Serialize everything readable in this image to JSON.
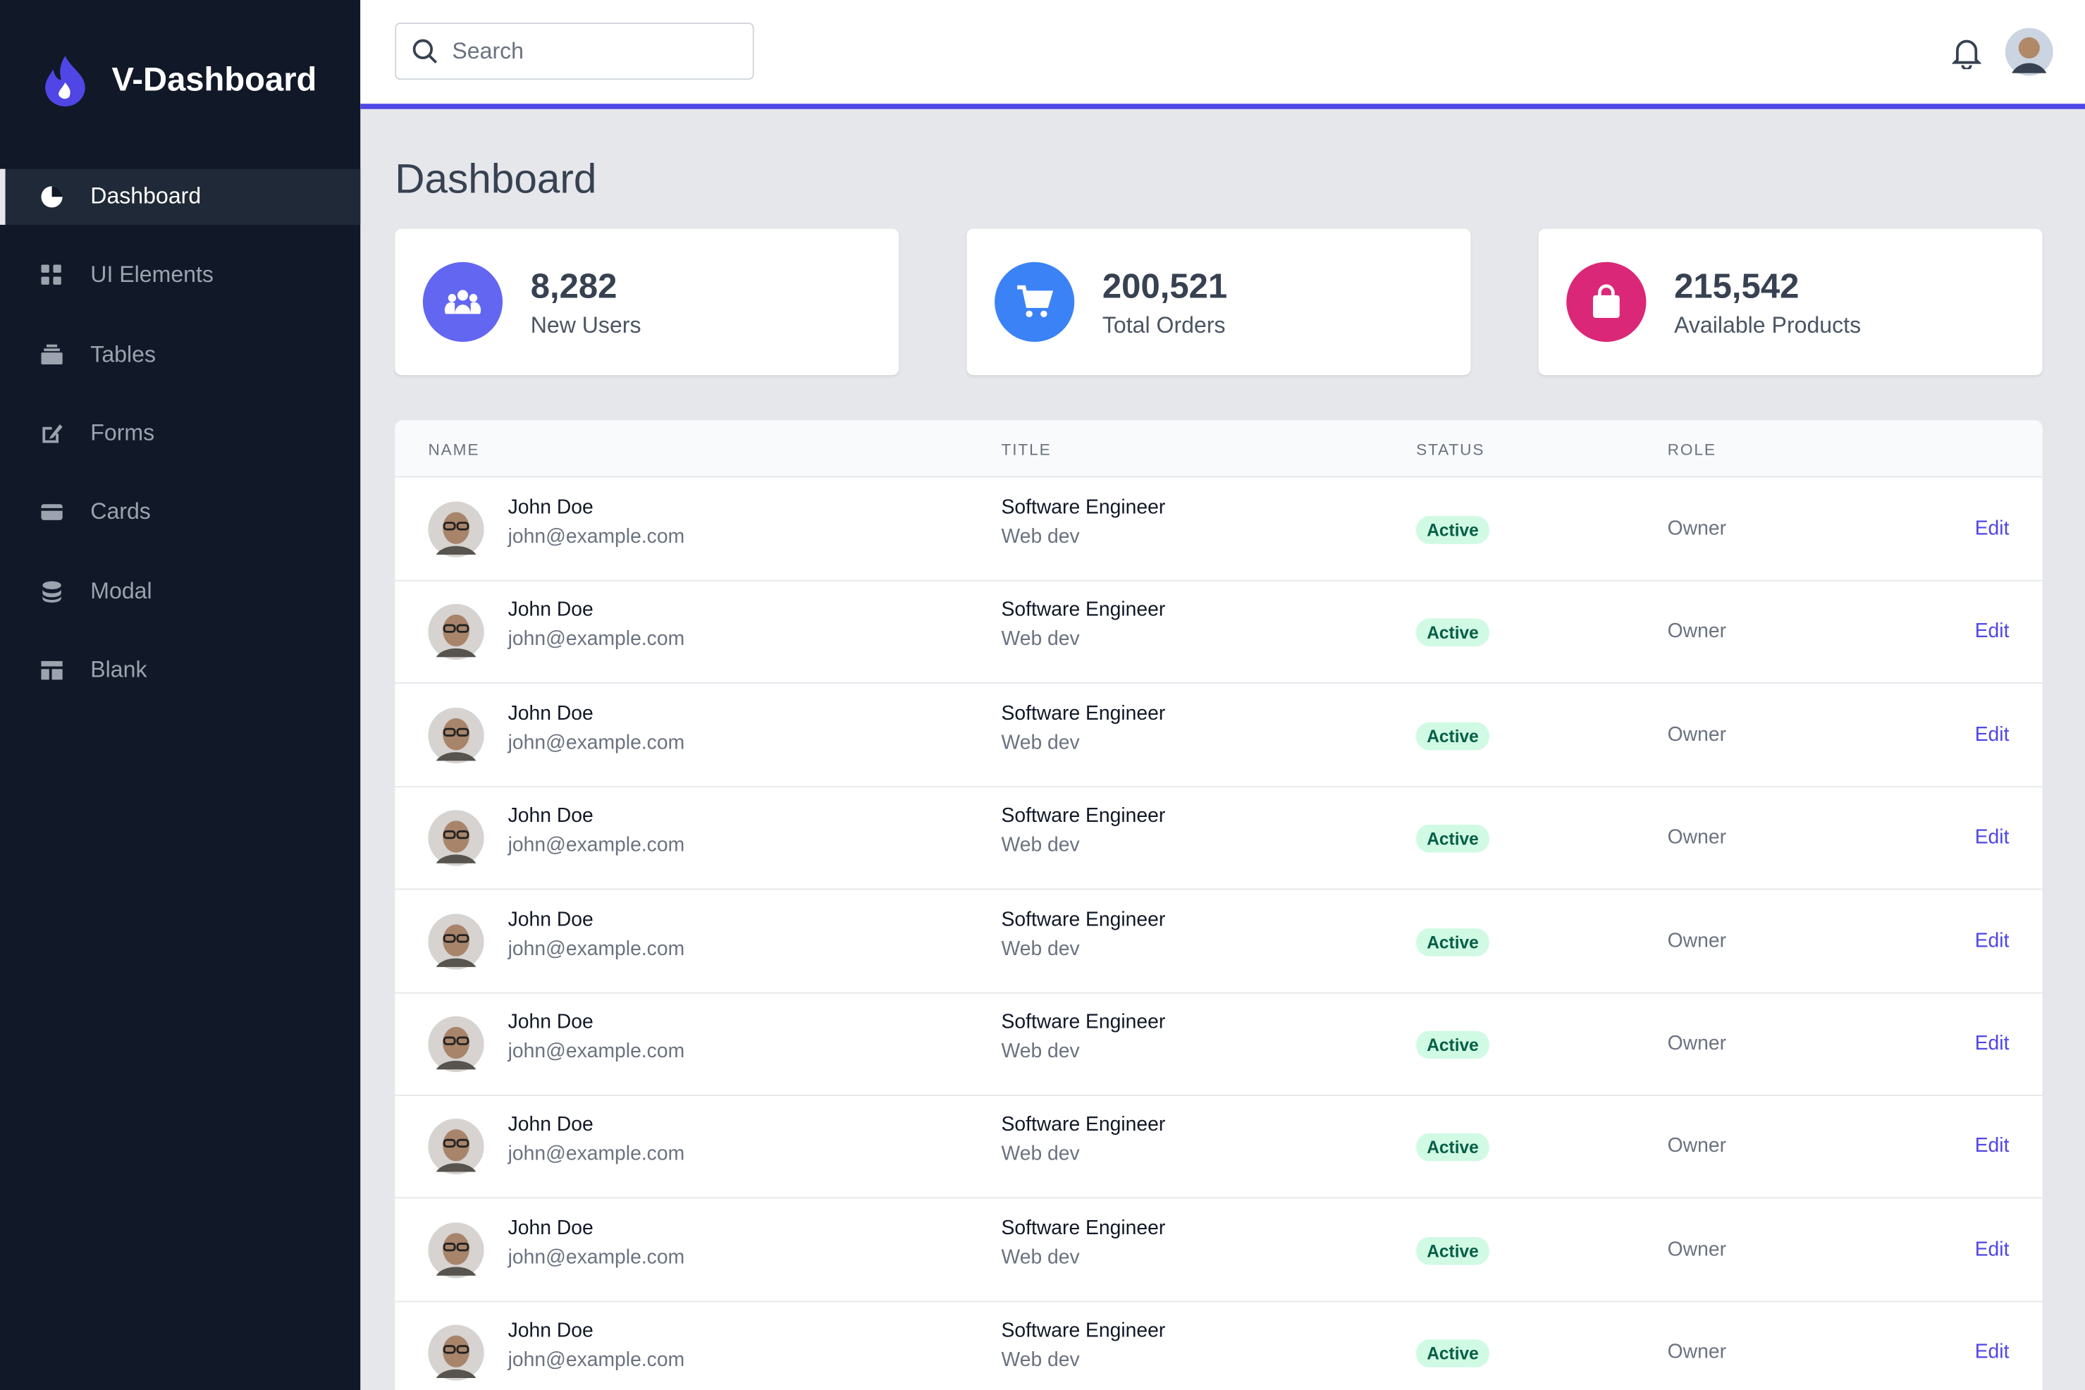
{
  "sidebar": {
    "brand": "V-Dashboard",
    "nav": [
      "Dashboard",
      "UI Elements",
      "Tables",
      "Forms",
      "Cards",
      "Modal",
      "Blank"
    ],
    "active": 0
  },
  "header": {
    "search_placeholder": "Search"
  },
  "page": {
    "title": "Dashboard"
  },
  "stats": [
    {
      "value": "8,282",
      "label": "New Users",
      "color": "#6366f1"
    },
    {
      "value": "200,521",
      "label": "Total Orders",
      "color": "#3b82f6"
    },
    {
      "value": "215,542",
      "label": "Available Products",
      "color": "#db2777"
    }
  ],
  "table": {
    "columns": [
      "NAME",
      "TITLE",
      "STATUS",
      "ROLE"
    ],
    "rows": [
      {
        "name": "John Doe",
        "email": "john@example.com",
        "title": "Software Engineer",
        "subtitle": "Web dev",
        "status": "Active",
        "role": "Owner",
        "action": "Edit"
      },
      {
        "name": "John Doe",
        "email": "john@example.com",
        "title": "Software Engineer",
        "subtitle": "Web dev",
        "status": "Active",
        "role": "Owner",
        "action": "Edit"
      },
      {
        "name": "John Doe",
        "email": "john@example.com",
        "title": "Software Engineer",
        "subtitle": "Web dev",
        "status": "Active",
        "role": "Owner",
        "action": "Edit"
      },
      {
        "name": "John Doe",
        "email": "john@example.com",
        "title": "Software Engineer",
        "subtitle": "Web dev",
        "status": "Active",
        "role": "Owner",
        "action": "Edit"
      },
      {
        "name": "John Doe",
        "email": "john@example.com",
        "title": "Software Engineer",
        "subtitle": "Web dev",
        "status": "Active",
        "role": "Owner",
        "action": "Edit"
      },
      {
        "name": "John Doe",
        "email": "john@example.com",
        "title": "Software Engineer",
        "subtitle": "Web dev",
        "status": "Active",
        "role": "Owner",
        "action": "Edit"
      },
      {
        "name": "John Doe",
        "email": "john@example.com",
        "title": "Software Engineer",
        "subtitle": "Web dev",
        "status": "Active",
        "role": "Owner",
        "action": "Edit"
      },
      {
        "name": "John Doe",
        "email": "john@example.com",
        "title": "Software Engineer",
        "subtitle": "Web dev",
        "status": "Active",
        "role": "Owner",
        "action": "Edit"
      },
      {
        "name": "John Doe",
        "email": "john@example.com",
        "title": "Software Engineer",
        "subtitle": "Web dev",
        "status": "Active",
        "role": "Owner",
        "action": "Edit"
      }
    ]
  }
}
